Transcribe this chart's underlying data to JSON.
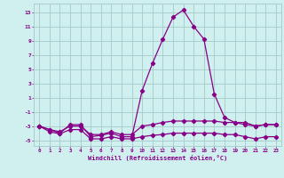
{
  "xlabel": "Windchill (Refroidissement éolien,°C)",
  "bg_color": "#cff0ee",
  "grid_color": "#aacece",
  "line_color": "#880088",
  "xlim": [
    -0.5,
    23.5
  ],
  "ylim": [
    -5.8,
    14.2
  ],
  "xticks": [
    0,
    1,
    2,
    3,
    4,
    5,
    6,
    7,
    8,
    9,
    10,
    11,
    12,
    13,
    14,
    15,
    16,
    17,
    18,
    19,
    20,
    21,
    22,
    23
  ],
  "yticks": [
    -5,
    -3,
    -1,
    1,
    3,
    5,
    7,
    9,
    11,
    13
  ],
  "line1_x": [
    0,
    1,
    2,
    3,
    4,
    5,
    6,
    7,
    8,
    9,
    10,
    11,
    12,
    13,
    14,
    15,
    16,
    17,
    18,
    19,
    20,
    21,
    22,
    23
  ],
  "line1_y": [
    -3,
    -3.5,
    -4,
    -2.8,
    -2.8,
    -4.5,
    -4.3,
    -4.0,
    -4.5,
    -4.5,
    2.0,
    5.8,
    9.2,
    12.3,
    13.3,
    11.0,
    9.2,
    1.5,
    -1.8,
    -2.5,
    -2.5,
    -3.0,
    -2.8,
    -2.8
  ],
  "line2_x": [
    0,
    1,
    2,
    3,
    4,
    5,
    6,
    7,
    8,
    9,
    10,
    11,
    12,
    13,
    14,
    15,
    16,
    17,
    18,
    19,
    20,
    21,
    22,
    23
  ],
  "line2_y": [
    -3,
    -3.8,
    -4.1,
    -3.5,
    -3.5,
    -4.8,
    -4.8,
    -4.5,
    -4.8,
    -4.8,
    -4.5,
    -4.3,
    -4.2,
    -4.0,
    -4.0,
    -4.0,
    -4.0,
    -4.0,
    -4.2,
    -4.2,
    -4.5,
    -4.8,
    -4.5,
    -4.5
  ],
  "line3_x": [
    0,
    1,
    2,
    3,
    4,
    5,
    6,
    7,
    8,
    9,
    10,
    11,
    12,
    13,
    14,
    15,
    16,
    17,
    18,
    19,
    20,
    21,
    22,
    23
  ],
  "line3_y": [
    -3,
    -3.5,
    -3.8,
    -3.0,
    -3.0,
    -4.2,
    -4.2,
    -3.8,
    -4.2,
    -4.2,
    -3.0,
    -2.8,
    -2.5,
    -2.3,
    -2.3,
    -2.3,
    -2.3,
    -2.3,
    -2.5,
    -2.5,
    -2.8,
    -3.0,
    -2.8,
    -2.8
  ]
}
